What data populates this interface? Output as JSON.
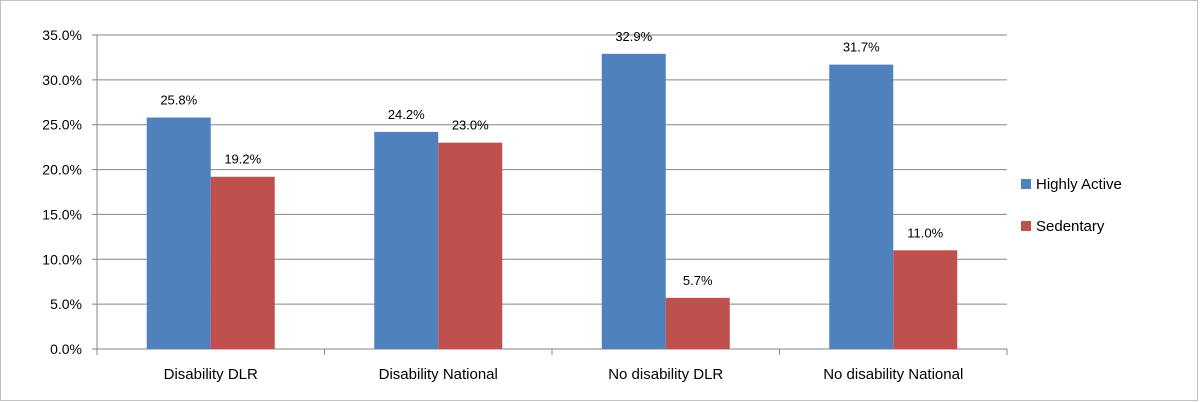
{
  "chart_data": {
    "type": "bar",
    "categories": [
      "Disability DLR",
      "Disability National",
      "No disability DLR",
      "No disability National"
    ],
    "series": [
      {
        "name": "Highly Active",
        "values": [
          25.8,
          24.2,
          32.9,
          31.7
        ],
        "labels": [
          "25.8%",
          "24.2%",
          "32.9%",
          "31.7%"
        ],
        "color": "#4F81BD"
      },
      {
        "name": "Sedentary",
        "values": [
          19.2,
          23.0,
          5.7,
          11.0
        ],
        "labels": [
          "19.2%",
          "23.0%",
          "5.7%",
          "11.0%"
        ],
        "color": "#C0504D"
      }
    ],
    "yticks": [
      "0.0%",
      "5.0%",
      "10.0%",
      "15.0%",
      "20.0%",
      "25.0%",
      "30.0%",
      "35.0%"
    ],
    "ylim": [
      0,
      35
    ],
    "title": "",
    "xlabel": "",
    "ylabel": "",
    "grid": true,
    "legend_position": "right"
  }
}
